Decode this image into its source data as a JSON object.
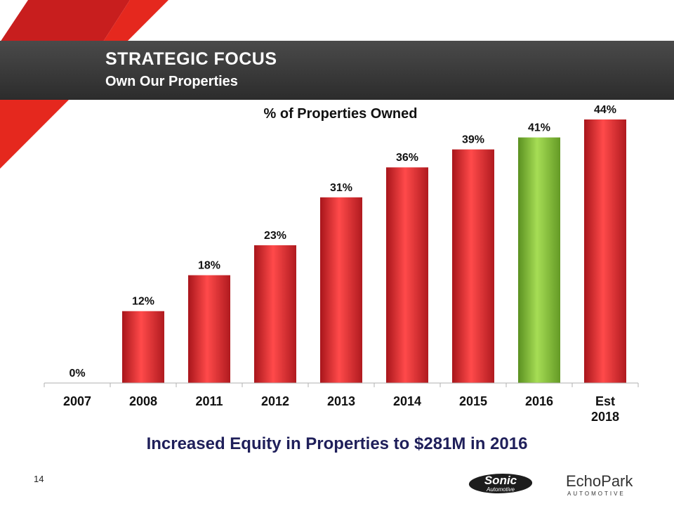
{
  "slide": {
    "title": "STRATEGIC FOCUS",
    "subtitle": "Own Our Properties",
    "footer_text": "Increased Equity in Properties to $281M in 2016",
    "page_number": "14",
    "logo_sonic_main": "Sonic",
    "logo_sonic_sub": "Automotive",
    "logo_echopark_main": "EchoPark",
    "logo_echopark_sub": "AUTOMOTIVE"
  },
  "colors": {
    "accent_red": "#e5281e",
    "bar_red": "#e8343a",
    "bar_red_dark": "#a8151b",
    "bar_green": "#8dc63f",
    "bar_green_dark": "#5a9020",
    "header_bg": "#3a3a3a"
  },
  "chart_data": {
    "type": "bar",
    "title": "% of Properties Owned",
    "categories": [
      "2007",
      "2008",
      "2011",
      "2012",
      "2013",
      "2014",
      "2015",
      "2016",
      "Est\n2018"
    ],
    "values": [
      0,
      12,
      18,
      23,
      31,
      36,
      39,
      41,
      44
    ],
    "value_labels": [
      "0%",
      "12%",
      "18%",
      "23%",
      "31%",
      "36%",
      "39%",
      "41%",
      "44%"
    ],
    "highlight_index": 7,
    "ylim": [
      0,
      44
    ],
    "xlabel": "",
    "ylabel": "",
    "grid": false,
    "legend": "none"
  }
}
